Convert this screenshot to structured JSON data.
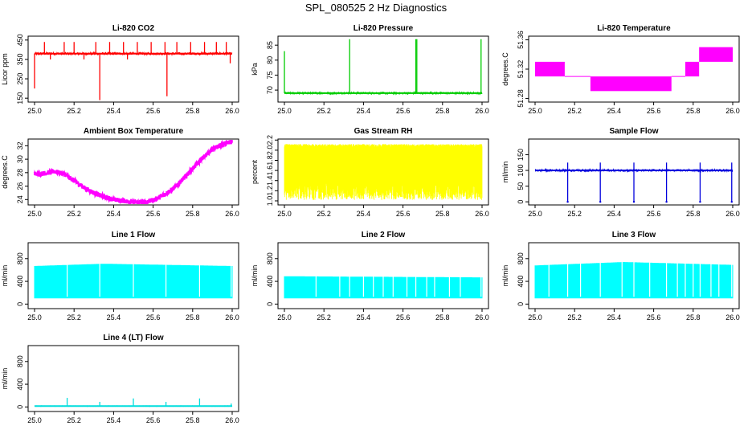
{
  "page_title": "SPL_080525  2 Hz Diagnostics",
  "chart_data": [
    {
      "id": "co2",
      "type": "line",
      "title": "Li-820 CO2",
      "ylabel": "Licor ppm",
      "xlabel": "",
      "color": "#ff0000",
      "xlim": [
        25.0,
        26.0
      ],
      "ylim": [
        130,
        470
      ],
      "xticks": [
        "25.0",
        "25.2",
        "25.4",
        "25.6",
        "25.8",
        "26.0"
      ],
      "yticks": [
        150,
        250,
        350,
        450
      ],
      "baseline": 380,
      "noise": 6,
      "spikes": [
        {
          "x": 25.0,
          "y": 200
        },
        {
          "x": 25.05,
          "y": 440
        },
        {
          "x": 25.08,
          "y": 350
        },
        {
          "x": 25.15,
          "y": 440
        },
        {
          "x": 25.2,
          "y": 440
        },
        {
          "x": 25.25,
          "y": 350
        },
        {
          "x": 25.31,
          "y": 440
        },
        {
          "x": 25.33,
          "y": 140
        },
        {
          "x": 25.38,
          "y": 440
        },
        {
          "x": 25.45,
          "y": 440
        },
        {
          "x": 25.47,
          "y": 350
        },
        {
          "x": 25.52,
          "y": 440
        },
        {
          "x": 25.59,
          "y": 440
        },
        {
          "x": 25.66,
          "y": 440
        },
        {
          "x": 25.67,
          "y": 160
        },
        {
          "x": 25.72,
          "y": 440
        },
        {
          "x": 25.79,
          "y": 440
        },
        {
          "x": 25.86,
          "y": 440
        },
        {
          "x": 25.92,
          "y": 440
        },
        {
          "x": 25.97,
          "y": 440
        },
        {
          "x": 25.99,
          "y": 330
        }
      ]
    },
    {
      "id": "pressure",
      "type": "line",
      "title": "Li-820 Pressure",
      "ylabel": "kPa",
      "xlabel": "",
      "color": "#00cc00",
      "xlim": [
        25.0,
        26.0
      ],
      "ylim": [
        66,
        88
      ],
      "xticks": [
        "25.0",
        "25.2",
        "25.4",
        "25.6",
        "25.8",
        "26.0"
      ],
      "yticks": [
        70,
        75,
        80,
        85
      ],
      "baseline": 69,
      "noise": 0.3,
      "spikes": [
        {
          "x": 25.0,
          "y": 83
        },
        {
          "x": 25.33,
          "y": 87
        },
        {
          "x": 25.665,
          "y": 87
        },
        {
          "x": 25.67,
          "y": 87
        },
        {
          "x": 25.995,
          "y": 87
        }
      ]
    },
    {
      "id": "temperature",
      "type": "step",
      "title": "Li-820 Temperature",
      "ylabel": "degrees.C",
      "xlabel": "",
      "color": "#ff00ff",
      "xlim": [
        25.0,
        26.0
      ],
      "ylim": [
        51.275,
        51.365
      ],
      "xticks": [
        "25.0",
        "25.2",
        "25.4",
        "25.6",
        "25.8",
        "26.0"
      ],
      "yticks": [
        "51.28",
        "51.32",
        "51.36"
      ],
      "segments": [
        {
          "x0": 25.0,
          "x1": 25.15,
          "lo": 51.31,
          "hi": 51.33
        },
        {
          "x0": 25.15,
          "x1": 25.28,
          "lo": 51.31,
          "hi": 51.31
        },
        {
          "x0": 25.28,
          "x1": 25.69,
          "lo": 51.29,
          "hi": 51.31
        },
        {
          "x0": 25.69,
          "x1": 25.76,
          "lo": 51.31,
          "hi": 51.31
        },
        {
          "x0": 25.76,
          "x1": 25.83,
          "lo": 51.31,
          "hi": 51.33
        },
        {
          "x0": 25.83,
          "x1": 26.0,
          "lo": 51.33,
          "hi": 51.35
        }
      ]
    },
    {
      "id": "ambient",
      "type": "line",
      "title": "Ambient Box Temperature",
      "ylabel": "degrees.C",
      "xlabel": "",
      "color": "#ff00ff",
      "xlim": [
        25.0,
        26.0
      ],
      "ylim": [
        23.2,
        33.0
      ],
      "xticks": [
        "25.0",
        "25.2",
        "25.4",
        "25.6",
        "25.8",
        "26.0"
      ],
      "yticks": [
        24,
        26,
        28,
        30,
        32
      ],
      "x": [
        25.0,
        25.05,
        25.1,
        25.15,
        25.2,
        25.25,
        25.3,
        25.35,
        25.4,
        25.45,
        25.5,
        25.55,
        25.6,
        25.65,
        25.7,
        25.75,
        25.8,
        25.85,
        25.9,
        25.95,
        26.0
      ],
      "y": [
        27.8,
        27.9,
        28.2,
        27.8,
        26.8,
        25.8,
        25.0,
        24.4,
        24.0,
        23.8,
        23.6,
        23.6,
        23.9,
        24.6,
        25.6,
        27.0,
        28.6,
        30.2,
        31.5,
        32.2,
        32.6
      ],
      "noise": 0.35
    },
    {
      "id": "rh",
      "type": "band",
      "title": "Gas Stream RH",
      "ylabel": "percent",
      "xlabel": "",
      "color": "#ffff00",
      "xlim": [
        25.0,
        26.0
      ],
      "ylim": [
        0.92,
        2.22
      ],
      "xticks": [
        "25.0",
        "25.2",
        "25.4",
        "25.6",
        "25.8",
        "26.0"
      ],
      "yticks": [
        "1.0",
        "1.2",
        "1.4",
        "1.6",
        "1.8",
        "2.0",
        "2.2"
      ],
      "band": [
        1.02,
        2.12
      ],
      "core": [
        1.4,
        2.05
      ]
    },
    {
      "id": "sample",
      "type": "line",
      "title": "Sample Flow",
      "ylabel": "ml/min",
      "xlabel": "",
      "color": "#0000dd",
      "xlim": [
        25.0,
        26.0
      ],
      "ylim": [
        -10,
        200
      ],
      "xticks": [
        "25.0",
        "25.2",
        "25.4",
        "25.6",
        "25.8",
        "26.0"
      ],
      "yticks": [
        0,
        50,
        100,
        150
      ],
      "baseline": 100,
      "noise": 3,
      "dips": [
        {
          "x": 25.165,
          "y": 0
        },
        {
          "x": 25.33,
          "y": 0
        },
        {
          "x": 25.5,
          "y": 0
        },
        {
          "x": 25.665,
          "y": 0
        },
        {
          "x": 25.835,
          "y": 0
        },
        {
          "x": 25.995,
          "y": 0
        }
      ]
    },
    {
      "id": "line1",
      "type": "band",
      "title": "Line 1 Flow",
      "ylabel": "ml/min",
      "xlabel": "",
      "color": "#00ffff",
      "xlim": [
        25.0,
        26.0
      ],
      "ylim": [
        -80,
        1080
      ],
      "xticks": [
        "25.0",
        "25.2",
        "25.4",
        "25.6",
        "25.8",
        "26.0"
      ],
      "yticks": [
        0,
        400,
        800
      ],
      "band": [
        100,
        700
      ],
      "top_profile": [
        [
          25.0,
          670
        ],
        [
          25.35,
          710
        ],
        [
          26.0,
          670
        ]
      ],
      "gaps": [
        25.165,
        25.33,
        25.5,
        25.665,
        25.835,
        25.995
      ]
    },
    {
      "id": "line2",
      "type": "band",
      "title": "Line 2 Flow",
      "ylabel": "ml/min",
      "xlabel": "",
      "color": "#00ffff",
      "xlim": [
        25.0,
        26.0
      ],
      "ylim": [
        -80,
        1080
      ],
      "xticks": [
        "25.0",
        "25.2",
        "25.4",
        "25.6",
        "25.8",
        "26.0"
      ],
      "yticks": [
        0,
        400,
        800
      ],
      "band": [
        100,
        500
      ],
      "top_profile": [
        [
          25.0,
          490
        ],
        [
          26.0,
          470
        ]
      ],
      "gaps": [
        25.16,
        25.28,
        25.33,
        25.4,
        25.45,
        25.5,
        25.55,
        25.62,
        25.665,
        25.72,
        25.76,
        25.835,
        25.89,
        25.995
      ]
    },
    {
      "id": "line3",
      "type": "band",
      "title": "Line 3 Flow",
      "ylabel": "ml/min",
      "xlabel": "",
      "color": "#00ffff",
      "xlim": [
        25.0,
        26.0
      ],
      "ylim": [
        -80,
        1080
      ],
      "xticks": [
        "25.0",
        "25.2",
        "25.4",
        "25.6",
        "25.8",
        "26.0"
      ],
      "yticks": [
        0,
        400,
        800
      ],
      "band": [
        100,
        700
      ],
      "top_profile": [
        [
          25.0,
          680
        ],
        [
          25.45,
          740
        ],
        [
          26.0,
          690
        ]
      ],
      "gaps": [
        25.07,
        25.165,
        25.23,
        25.33,
        25.44,
        25.5,
        25.58,
        25.665,
        25.72,
        25.76,
        25.8,
        25.835,
        25.89,
        25.93,
        25.995
      ]
    },
    {
      "id": "line4",
      "type": "line",
      "title": "Line 4 (LT) Flow",
      "ylabel": "ml/min",
      "xlabel": "",
      "color": "#00dddd",
      "xlim": [
        25.0,
        26.0
      ],
      "ylim": [
        -80,
        1080
      ],
      "xticks": [
        "25.0",
        "25.2",
        "25.4",
        "25.6",
        "25.8",
        "26.0"
      ],
      "yticks": [
        0,
        400,
        800
      ],
      "baseline": 15,
      "noise": 5,
      "spikes": [
        {
          "x": 25.165,
          "y": 160
        },
        {
          "x": 25.33,
          "y": 90
        },
        {
          "x": 25.5,
          "y": 150
        },
        {
          "x": 25.665,
          "y": 90
        },
        {
          "x": 25.835,
          "y": 150
        },
        {
          "x": 25.995,
          "y": 60
        }
      ]
    }
  ]
}
